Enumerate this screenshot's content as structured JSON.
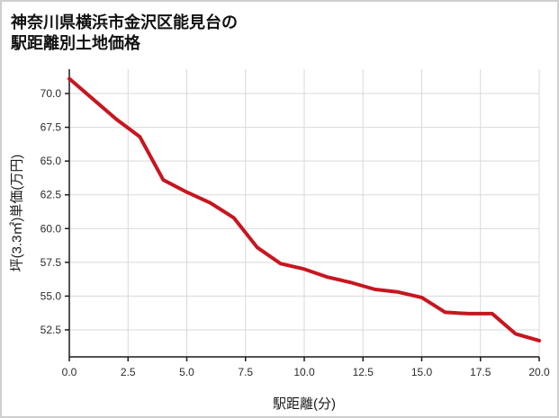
{
  "title": {
    "line1": "神奈川県横浜市金沢区能見台の",
    "line2": "駅距離別土地価格"
  },
  "chart_data": {
    "type": "line",
    "title": "神奈川県横浜市金沢区能見台の駅距離別土地価格",
    "xlabel": "駅距離(分)",
    "ylabel": "坪(3.3㎡)単価(万円)",
    "x": [
      0,
      1,
      2,
      3,
      4,
      5,
      6,
      7,
      8,
      9,
      10,
      11,
      12,
      13,
      14,
      15,
      16,
      17,
      18,
      19,
      20
    ],
    "values": [
      71.1,
      69.6,
      68.1,
      66.8,
      63.6,
      62.7,
      61.9,
      60.8,
      58.6,
      57.4,
      57.0,
      56.4,
      56.0,
      55.5,
      55.3,
      54.9,
      53.8,
      53.7,
      53.7,
      52.2,
      51.7
    ],
    "xlim": [
      0,
      20
    ],
    "ylim": [
      50.5,
      71.8
    ],
    "xticks": [
      0,
      2.5,
      5,
      7.5,
      10,
      12.5,
      15,
      17.5,
      20
    ],
    "yticks": [
      52.5,
      55,
      57.5,
      60,
      62.5,
      65,
      67.5,
      70
    ],
    "grid": true,
    "legend": "none",
    "line_color": "#c7161f",
    "grid_color": "#d9d9d9",
    "axis_color": "#1a1a1a",
    "background": "#ffffff"
  }
}
